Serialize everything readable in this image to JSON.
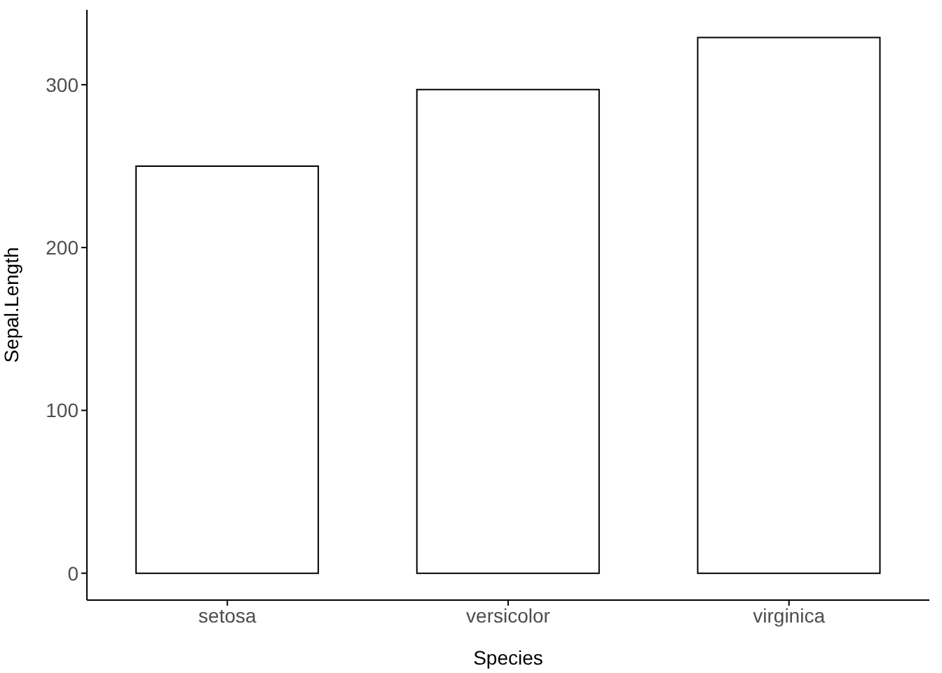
{
  "chart_data": {
    "type": "bar",
    "xlabel": "Species",
    "ylabel": "Sepal.Length",
    "categories": [
      "setosa",
      "versicolor",
      "virginica"
    ],
    "values": [
      250,
      297,
      329
    ],
    "color": "#ffffff",
    "ylim": [
      -16.5,
      346
    ],
    "yticks": [
      0,
      100,
      200,
      300
    ],
    "grid": false
  }
}
